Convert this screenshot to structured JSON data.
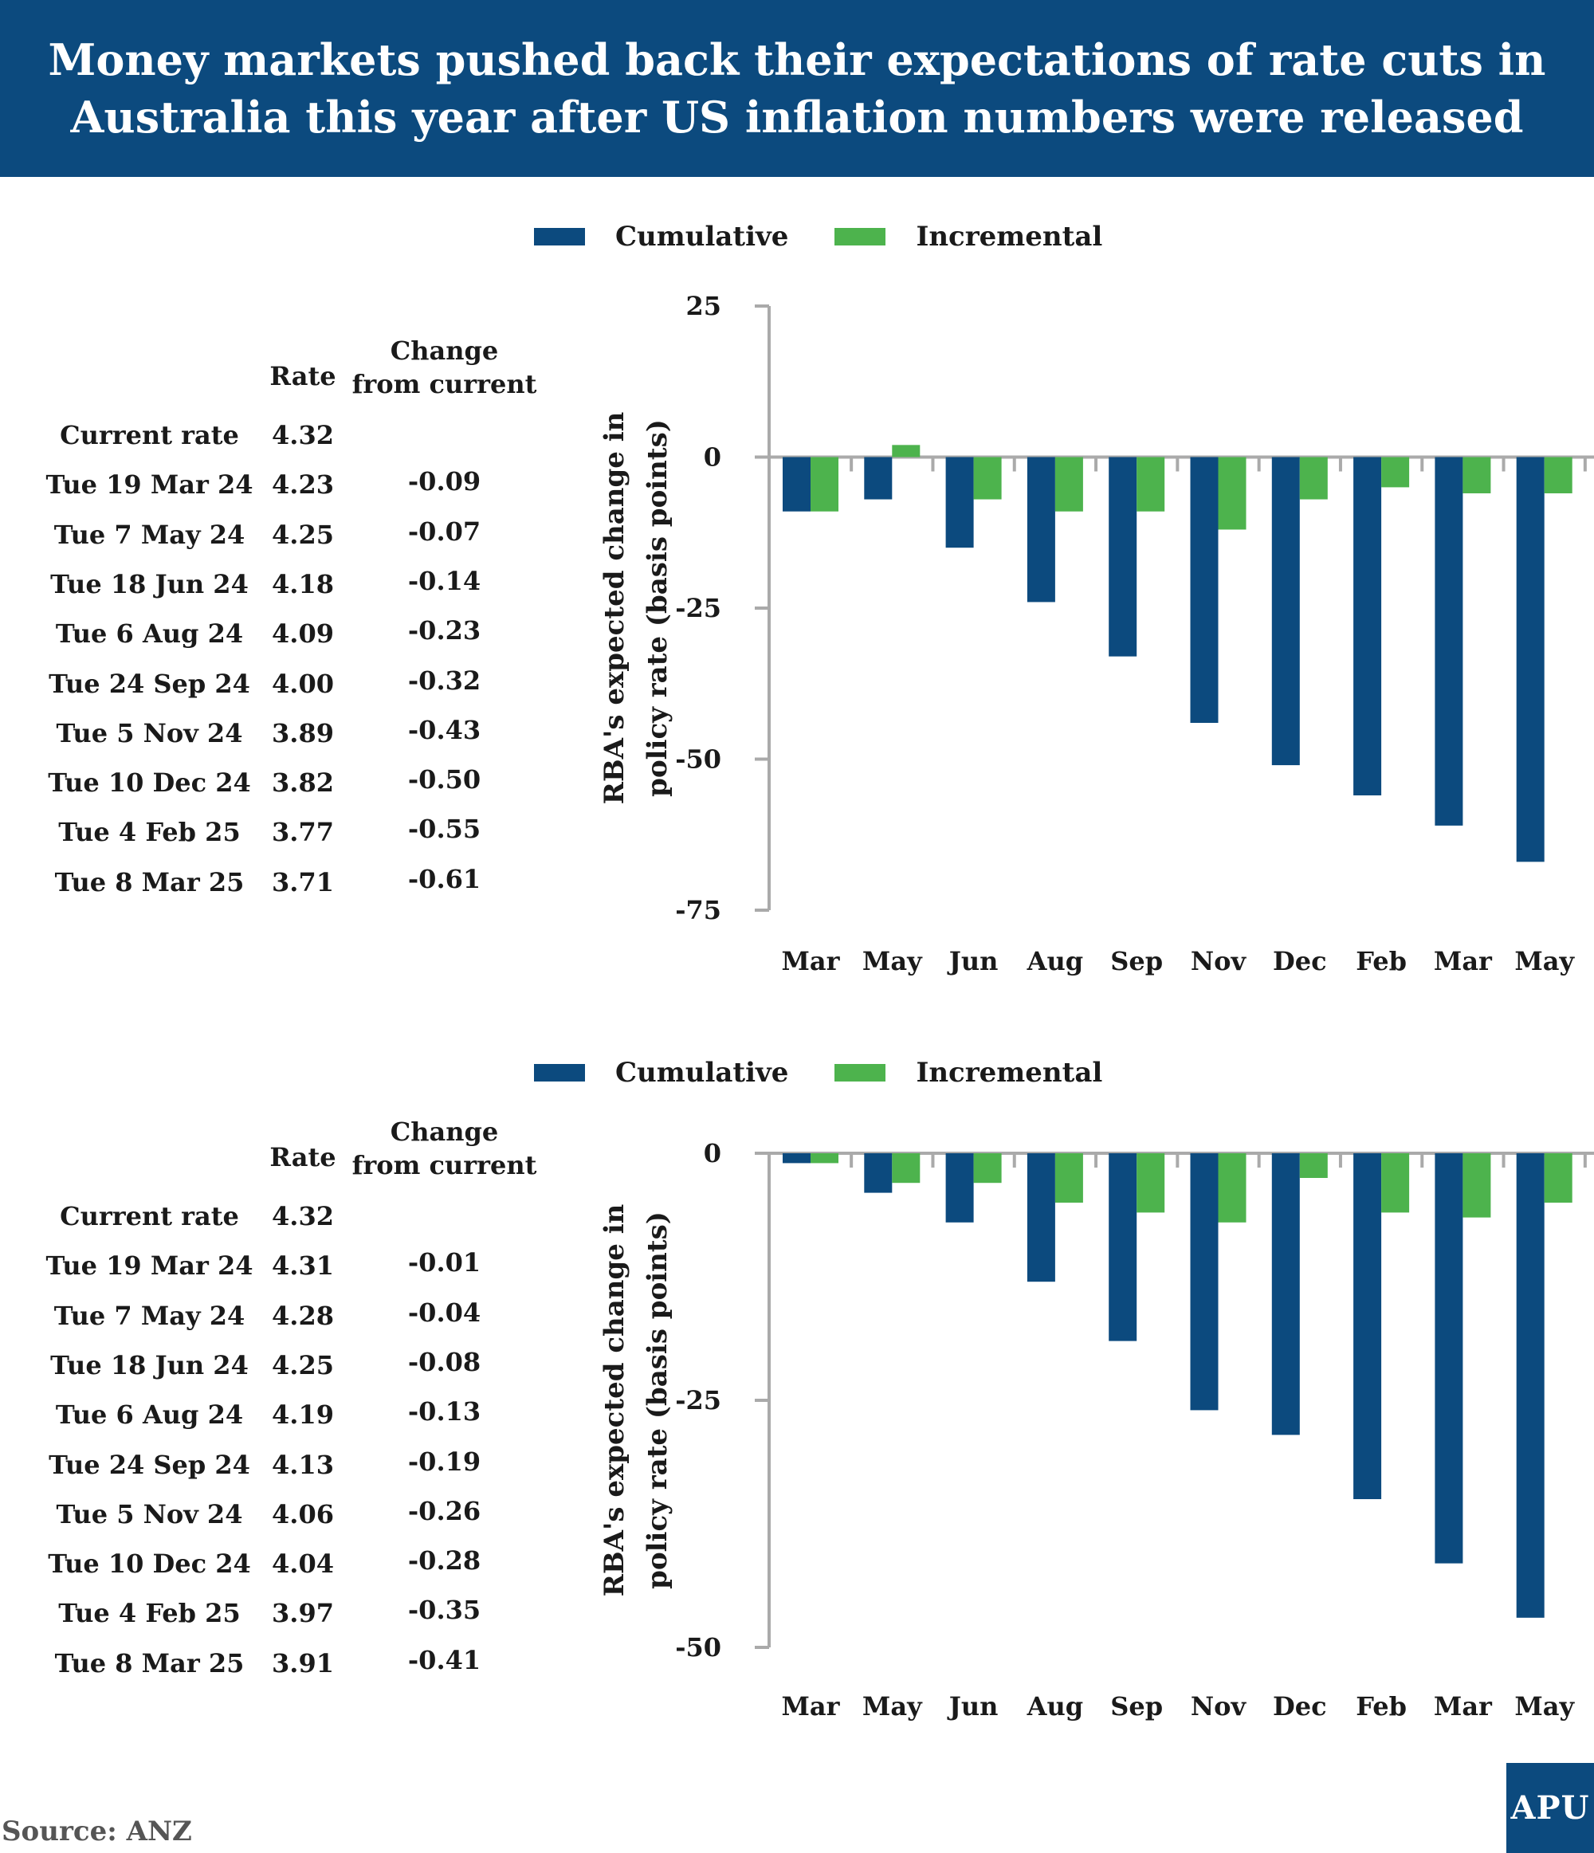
{
  "title": "Money markets pushed back their expectations of rate cuts in Australia this year after US inflation numbers were released",
  "source": "Source: ANZ",
  "logo": "APU",
  "colors": {
    "header": "#0c4a7e",
    "cumulative": "#0c4a7e",
    "incremental": "#4db34d",
    "axis": "#aaaaaa"
  },
  "legend": {
    "cumulative": "Cumulative",
    "incremental": "Incremental"
  },
  "table_headers": {
    "rate": "Rate",
    "change_line1": "Change",
    "change_line2": "from current"
  },
  "tables": [
    {
      "rows": [
        {
          "label": "Current rate",
          "rate": "4.32",
          "change": ""
        },
        {
          "label": "Tue 19 Mar 24",
          "rate": "4.23",
          "change": "-0.09"
        },
        {
          "label": "Tue 7 May 24",
          "rate": "4.25",
          "change": "-0.07"
        },
        {
          "label": "Tue 18 Jun 24",
          "rate": "4.18",
          "change": "-0.14"
        },
        {
          "label": "Tue 6 Aug 24",
          "rate": "4.09",
          "change": "-0.23"
        },
        {
          "label": "Tue 24 Sep 24",
          "rate": "4.00",
          "change": "-0.32"
        },
        {
          "label": "Tue 5 Nov 24",
          "rate": "3.89",
          "change": "-0.43"
        },
        {
          "label": "Tue 10 Dec 24",
          "rate": "3.82",
          "change": "-0.50"
        },
        {
          "label": "Tue 4 Feb 25",
          "rate": "3.77",
          "change": "-0.55"
        },
        {
          "label": "Tue 8 Mar 25",
          "rate": "3.71",
          "change": "-0.61"
        }
      ]
    },
    {
      "rows": [
        {
          "label": "Current rate",
          "rate": "4.32",
          "change": ""
        },
        {
          "label": "Tue 19 Mar 24",
          "rate": "4.31",
          "change": "-0.01"
        },
        {
          "label": "Tue 7 May 24",
          "rate": "4.28",
          "change": "-0.04"
        },
        {
          "label": "Tue 18 Jun 24",
          "rate": "4.25",
          "change": "-0.08"
        },
        {
          "label": "Tue 6 Aug 24",
          "rate": "4.19",
          "change": "-0.13"
        },
        {
          "label": "Tue 24 Sep 24",
          "rate": "4.13",
          "change": "-0.19"
        },
        {
          "label": "Tue 5 Nov 24",
          "rate": "4.06",
          "change": "-0.26"
        },
        {
          "label": "Tue 10 Dec 24",
          "rate": "4.04",
          "change": "-0.28"
        },
        {
          "label": "Tue 4 Feb 25",
          "rate": "3.97",
          "change": "-0.35"
        },
        {
          "label": "Tue 8 Mar 25",
          "rate": "3.91",
          "change": "-0.41"
        }
      ]
    }
  ],
  "chart_data": [
    {
      "type": "bar",
      "title": "",
      "ylabel": "RBA's expected change in policy rate (basis points)",
      "xlabel": "",
      "categories": [
        "Mar",
        "May",
        "Jun",
        "Aug",
        "Sep",
        "Nov",
        "Dec",
        "Feb",
        "Mar",
        "May"
      ],
      "ylim": [
        -75,
        25
      ],
      "yticks": [
        25,
        0,
        -25,
        -50,
        -75
      ],
      "series": [
        {
          "name": "Cumulative",
          "values": [
            -9,
            -7,
            -15,
            -24,
            -33,
            -44,
            -51,
            -56,
            -61,
            -67
          ]
        },
        {
          "name": "Incremental",
          "values": [
            -9,
            2,
            -7,
            -9,
            -9,
            -12,
            -7,
            -5,
            -6,
            -6
          ]
        }
      ]
    },
    {
      "type": "bar",
      "title": "",
      "ylabel": "RBA's expected change in policy rate (basis points)",
      "xlabel": "",
      "categories": [
        "Mar",
        "May",
        "Jun",
        "Aug",
        "Sep",
        "Nov",
        "Dec",
        "Feb",
        "Mar",
        "May"
      ],
      "ylim": [
        -50,
        0
      ],
      "yticks": [
        0,
        -25,
        -50
      ],
      "series": [
        {
          "name": "Cumulative",
          "values": [
            -1,
            -4,
            -7,
            -13,
            -19,
            -26,
            -28.5,
            -35,
            -41.5,
            -47
          ]
        },
        {
          "name": "Incremental",
          "values": [
            -1,
            -3,
            -3,
            -5,
            -6,
            -7,
            -2.5,
            -6,
            -6.5,
            -5
          ]
        }
      ]
    }
  ]
}
